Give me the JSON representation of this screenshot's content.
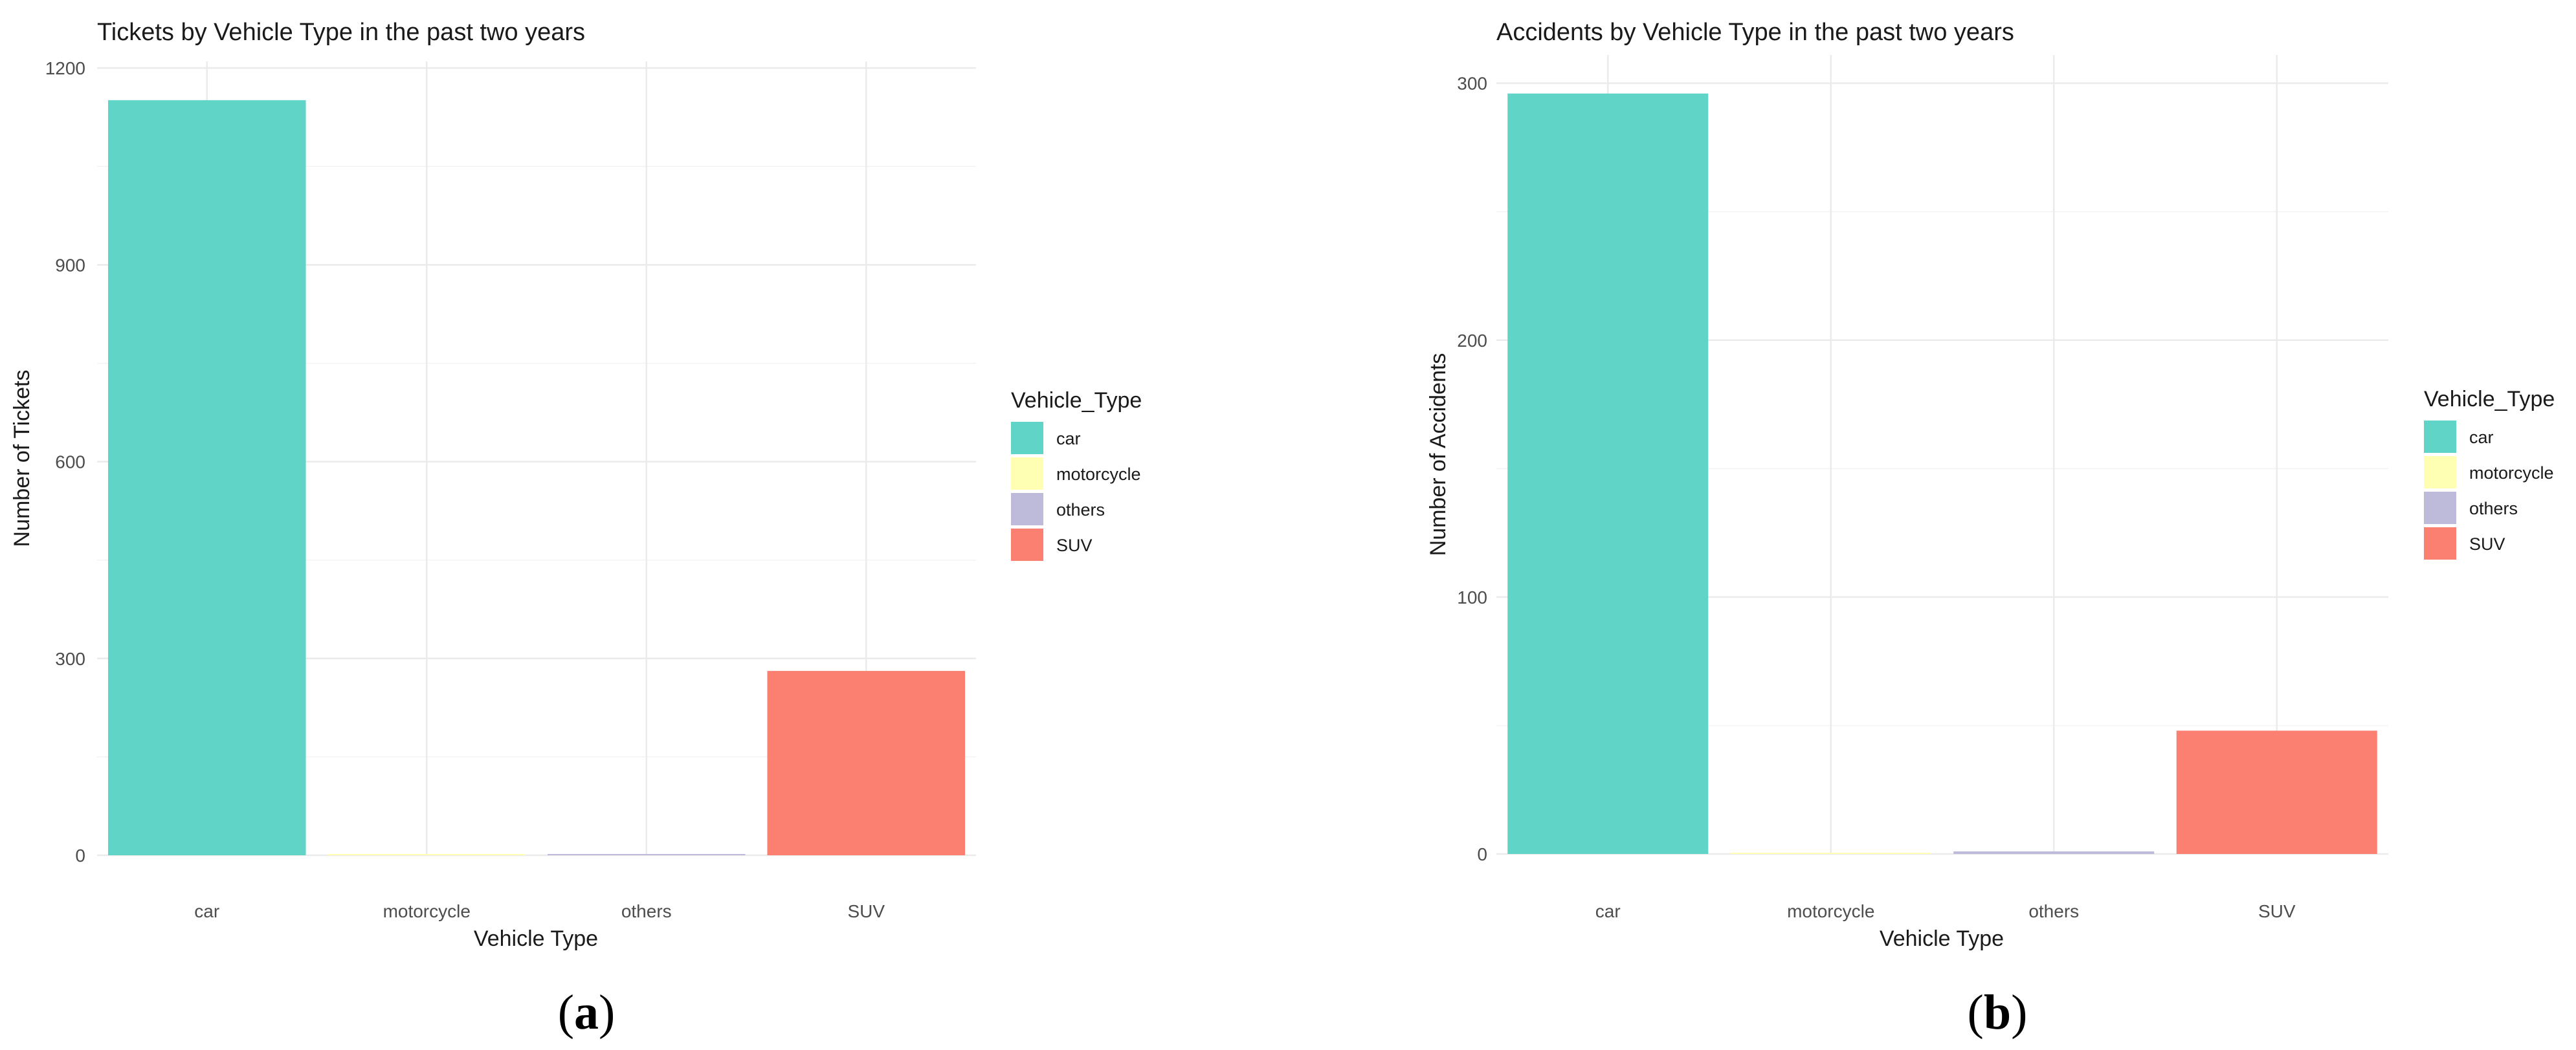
{
  "chart_data": [
    {
      "type": "bar",
      "title": "Tickets by Vehicle Type in the past two years",
      "xlabel": "Vehicle Type",
      "ylabel": "Number of Tickets",
      "categories": [
        "car",
        "motorcycle",
        "others",
        "SUV"
      ],
      "values": [
        1151,
        1,
        0,
        281
      ],
      "ylim": [
        0,
        1210
      ],
      "yticks": [
        0,
        300,
        600,
        900,
        1200
      ],
      "grid": true,
      "legend": {
        "title": "Vehicle_Type",
        "placement": "right",
        "entries": [
          "car",
          "motorcycle",
          "others",
          "SUV"
        ]
      },
      "colors": [
        "#61d4c8",
        "#ffffb3",
        "#bebada",
        "#fb8072"
      ],
      "panel_label": {
        "open": "(",
        "letter": "a",
        "close": ")"
      }
    },
    {
      "type": "bar",
      "title": "Accidents by Vehicle Type in the past two years",
      "xlabel": "Vehicle Type",
      "ylabel": "Number of Accidents",
      "categories": [
        "car",
        "motorcycle",
        "others",
        "SUV"
      ],
      "values": [
        296,
        0.5,
        1,
        48
      ],
      "ylim": [
        0,
        311
      ],
      "yticks": [
        0,
        100,
        200,
        300
      ],
      "grid": true,
      "legend": {
        "title": "Vehicle_Type",
        "placement": "right",
        "entries": [
          "car",
          "motorcycle",
          "others",
          "SUV"
        ]
      },
      "colors": [
        "#61d4c8",
        "#ffffb3",
        "#bebada",
        "#fb8072"
      ],
      "panel_label": {
        "open": "(",
        "letter": "b",
        "close": ")"
      }
    }
  ]
}
